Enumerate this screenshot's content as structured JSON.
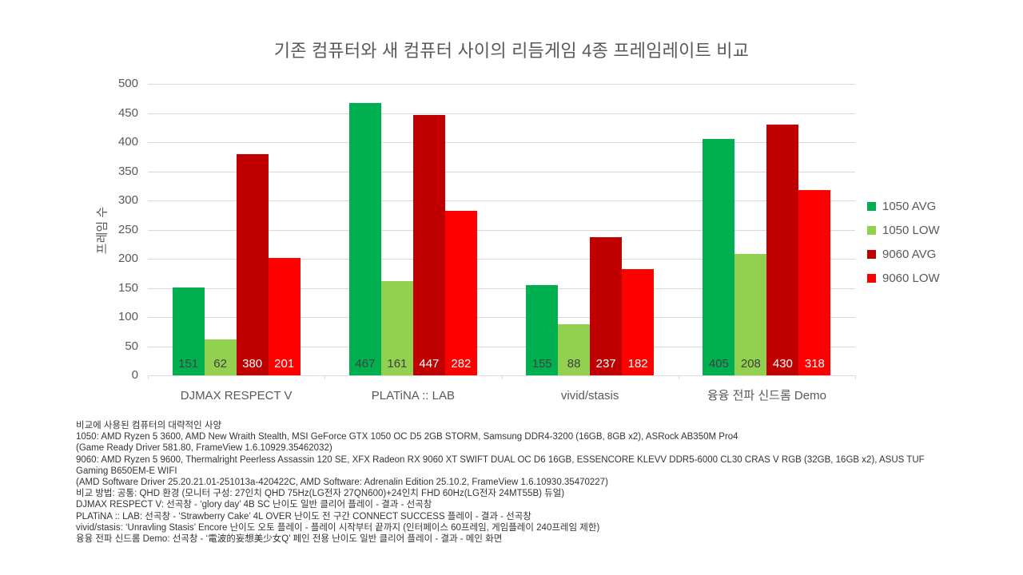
{
  "title": "기존 컴퓨터와 새 컴퓨터 사이의 리듬게임 4종 프레임레이트 비교",
  "chart_data": {
    "type": "bar",
    "title": "기존 컴퓨터와 새 컴퓨터 사이의 리듬게임 4종 프레임레이트 비교",
    "xlabel": "",
    "ylabel": "프레임 수",
    "ylim": [
      0,
      500
    ],
    "yticks": [
      0,
      50,
      100,
      150,
      200,
      250,
      300,
      350,
      400,
      450,
      500
    ],
    "grid": true,
    "legend_position": "right",
    "categories": [
      "DJMAX RESPECT V",
      "PLATiNA :: LAB",
      "vivid/stasis",
      "융융 전파 신드롬 Demo"
    ],
    "series": [
      {
        "name": "1050 AVG",
        "color": "#00B050",
        "label_color": "#404040",
        "values": [
          151,
          467,
          155,
          405
        ]
      },
      {
        "name": "1050 LOW",
        "color": "#92D050",
        "label_color": "#404040",
        "values": [
          62,
          161,
          88,
          208
        ]
      },
      {
        "name": "9060 AVG",
        "color": "#C00000",
        "label_color": "#FFFFFF",
        "values": [
          380,
          447,
          237,
          430
        ]
      },
      {
        "name": "9060 LOW",
        "color": "#FF0000",
        "label_color": "#FFFFFF",
        "values": [
          201,
          282,
          182,
          318
        ]
      }
    ]
  },
  "colors": {
    "axis_text": "#595959",
    "gridline": "#D9D9D9",
    "footer_text": "#333333",
    "background": "#FFFFFF"
  },
  "footer": {
    "lines": [
      "비교에 사용된 컴퓨터의 대략적인 사양",
      "1050: AMD Ryzen 5 3600, AMD New Wraith Stealth, MSI GeForce GTX 1050 OC D5 2GB STORM, Samsung DDR4-3200 (16GB, 8GB x2), ASRock AB350M Pro4",
      "(Game Ready Driver 581.80, FrameView 1.6.10929.35462032)",
      "9060: AMD Ryzen 5 9600, Thermalright Peerless Assassin 120 SE, XFX Radeon RX 9060 XT SWIFT DUAL OC D6 16GB, ESSENCORE KLEVV DDR5-6000 CL30 CRAS V RGB (32GB, 16GB x2), ASUS TUF",
      "Gaming B650EM-E WIFI",
      "(AMD Software Driver 25.20.21.01-251013a-420422C, AMD Software: Adrenalin Edition 25.10.2, FrameView 1.6.10930.35470227)",
      "비교 방법: 공통: QHD 환경 (모니터 구성: 27인치 QHD 75Hz(LG전자 27QN600)+24인치 FHD 60Hz(LG전자 24MT55B) 듀얼)",
      "DJMAX RESPECT V: 선곡창 - ‘glory day’ 4B SC 난이도 일반 클리어 플레이 - 결과 - 선곡창",
      "PLATiNA :: LAB: 선곡창 - ‘Strawberry Cake’ 4L OVER 난이도 전 구간 CONNECT SUCCESS 플레이 - 결과 - 선곡창",
      "vivid/stasis: ‘Unravling Stasis’ Encore 난이도 오토 플레이 - 플레이 시작부터 끝까지 (인터페이스 60프레임, 게임플레이 240프레임 제한)",
      "융융 전파 신드롬 Demo: 선곡창 - ‘電波的妄想美少女Q’ 페인 전용 난이도 일반 클리어 플레이 - 결과 - 메인 화면"
    ]
  }
}
